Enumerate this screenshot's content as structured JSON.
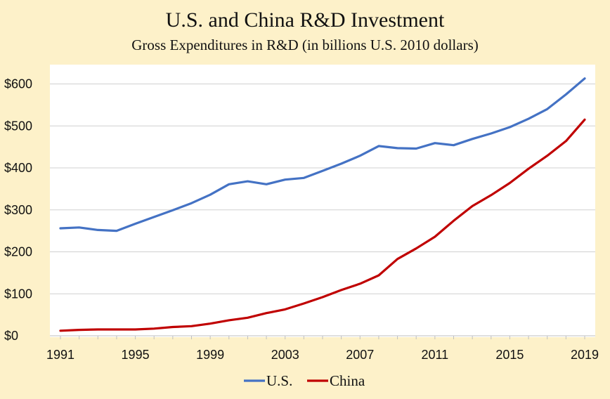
{
  "chart_data": {
    "type": "line",
    "title": "U.S. and China R&D Investment",
    "subtitle": "Gross Expenditures in R&D (in billions U.S. 2010 dollars)",
    "xlabel": "",
    "ylabel": "",
    "x": [
      1991,
      1992,
      1993,
      1994,
      1995,
      1996,
      1997,
      1998,
      1999,
      2000,
      2001,
      2002,
      2003,
      2004,
      2005,
      2006,
      2007,
      2008,
      2009,
      2010,
      2011,
      2012,
      2013,
      2014,
      2015,
      2016,
      2017,
      2018,
      2019
    ],
    "series": [
      {
        "name": "U.S.",
        "color": "#4472c4",
        "values": [
          256,
          258,
          252,
          250,
          267,
          283,
          299,
          316,
          336,
          361,
          368,
          361,
          372,
          376,
          393,
          410,
          429,
          452,
          447,
          446,
          459,
          454,
          469,
          482,
          497,
          517,
          540,
          575,
          613
        ]
      },
      {
        "name": "China",
        "color": "#c00000",
        "values": [
          12,
          14,
          15,
          15,
          15,
          17,
          21,
          23,
          29,
          37,
          43,
          54,
          63,
          77,
          92,
          109,
          124,
          144,
          183,
          208,
          236,
          274,
          309,
          335,
          364,
          398,
          429,
          464,
          515
        ]
      }
    ],
    "xlim": [
      1991,
      2019
    ],
    "ylim": [
      0,
      660
    ],
    "x_ticks": [
      "1991",
      "1995",
      "1999",
      "2003",
      "2007",
      "2011",
      "2015",
      "2019"
    ],
    "y_ticks": [
      "$0",
      "$100",
      "$200",
      "$300",
      "$400",
      "$500",
      "$600"
    ],
    "grid": "horizontal",
    "legend": "bottom-center"
  }
}
